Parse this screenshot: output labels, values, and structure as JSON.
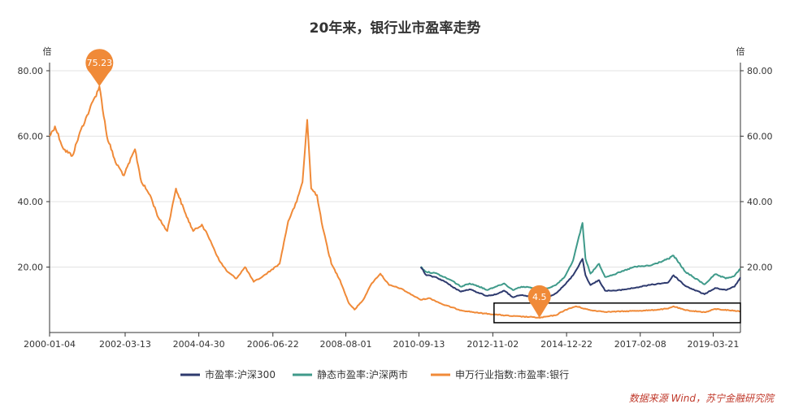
{
  "chart_data": {
    "type": "line",
    "title": "20年来，银行业市盈率走势",
    "y_unit_left": "倍",
    "y_unit_right": "倍",
    "ylim": [
      0,
      80
    ],
    "yticks": [
      "80.00",
      "60.00",
      "40.00",
      "20.00"
    ],
    "xlim": [
      "2000-01-04",
      "2020-01-03"
    ],
    "xticks": [
      "2000-01-04",
      "2002-03-13",
      "2004-04-30",
      "2006-06-22",
      "2008-08-01",
      "2010-09-13",
      "2012-11-02",
      "2014-12-22",
      "2017-02-08",
      "2019-03-21"
    ],
    "grid": true,
    "legend_position": "bottom",
    "colors": {
      "hs300": "#2e3a6e",
      "static": "#3f9a8a",
      "bank": "#f08a38"
    },
    "series": [
      {
        "name": "市盈率:沪深300",
        "color_key": "hs300",
        "points": [
          [
            "2010-10-01",
            20.0
          ],
          [
            "2010-12-01",
            17.5
          ],
          [
            "2011-03-01",
            17.0
          ],
          [
            "2011-06-01",
            15.8
          ],
          [
            "2011-09-01",
            14.0
          ],
          [
            "2011-12-01",
            12.5
          ],
          [
            "2012-03-01",
            13.2
          ],
          [
            "2012-06-01",
            12.2
          ],
          [
            "2012-09-01",
            11.2
          ],
          [
            "2012-12-01",
            11.6
          ],
          [
            "2013-03-01",
            12.8
          ],
          [
            "2013-06-01",
            10.8
          ],
          [
            "2013-09-01",
            11.4
          ],
          [
            "2013-12-01",
            11.0
          ],
          [
            "2014-03-01",
            10.5
          ],
          [
            "2014-06-01",
            10.8
          ],
          [
            "2014-09-01",
            12.0
          ],
          [
            "2014-12-01",
            14.5
          ],
          [
            "2015-03-01",
            17.5
          ],
          [
            "2015-06-08",
            22.5
          ],
          [
            "2015-07-10",
            17.5
          ],
          [
            "2015-09-01",
            14.5
          ],
          [
            "2015-12-01",
            16.0
          ],
          [
            "2016-02-01",
            12.8
          ],
          [
            "2016-06-01",
            12.8
          ],
          [
            "2016-12-01",
            13.6
          ],
          [
            "2017-06-01",
            14.6
          ],
          [
            "2017-12-01",
            15.3
          ],
          [
            "2018-01-26",
            17.5
          ],
          [
            "2018-06-01",
            14.2
          ],
          [
            "2018-12-20",
            11.7
          ],
          [
            "2019-04-10",
            13.6
          ],
          [
            "2019-08-01",
            13.0
          ],
          [
            "2019-11-01",
            14.0
          ],
          [
            "2020-01-03",
            16.8
          ]
        ]
      },
      {
        "name": "静态市盈率:沪深两市",
        "color_key": "static",
        "points": [
          [
            "2010-10-01",
            20.1
          ],
          [
            "2010-12-01",
            18.5
          ],
          [
            "2011-03-01",
            18.2
          ],
          [
            "2011-06-01",
            17.0
          ],
          [
            "2011-09-01",
            15.8
          ],
          [
            "2011-12-01",
            14.0
          ],
          [
            "2012-03-01",
            15.0
          ],
          [
            "2012-06-01",
            14.2
          ],
          [
            "2012-09-01",
            13.0
          ],
          [
            "2012-12-01",
            14.0
          ],
          [
            "2013-03-01",
            15.0
          ],
          [
            "2013-06-01",
            13.0
          ],
          [
            "2013-09-01",
            14.0
          ],
          [
            "2013-12-01",
            13.8
          ],
          [
            "2014-03-01",
            13.0
          ],
          [
            "2014-06-01",
            13.5
          ],
          [
            "2014-09-01",
            14.5
          ],
          [
            "2014-12-01",
            17.0
          ],
          [
            "2015-03-01",
            22.0
          ],
          [
            "2015-06-08",
            33.5
          ],
          [
            "2015-07-10",
            22.5
          ],
          [
            "2015-09-01",
            18.0
          ],
          [
            "2015-12-01",
            21.0
          ],
          [
            "2016-02-01",
            17.0
          ],
          [
            "2016-06-01",
            18.0
          ],
          [
            "2016-12-01",
            20.0
          ],
          [
            "2017-06-01",
            20.5
          ],
          [
            "2017-12-01",
            22.5
          ],
          [
            "2018-01-26",
            23.5
          ],
          [
            "2018-06-01",
            18.5
          ],
          [
            "2018-12-20",
            14.7
          ],
          [
            "2019-04-10",
            17.8
          ],
          [
            "2019-08-01",
            16.5
          ],
          [
            "2019-11-01",
            17.3
          ],
          [
            "2020-01-03",
            19.5
          ]
        ]
      },
      {
        "name": "申万行业指数:市盈率:银行",
        "color_key": "bank",
        "points": [
          [
            "2000-01-04",
            60.0
          ],
          [
            "2000-03-01",
            63.0
          ],
          [
            "2000-06-01",
            56.0
          ],
          [
            "2000-09-01",
            54.0
          ],
          [
            "2000-12-01",
            62.0
          ],
          [
            "2001-03-01",
            68.0
          ],
          [
            "2001-06-14",
            75.23
          ],
          [
            "2001-09-01",
            60.0
          ],
          [
            "2001-12-01",
            52.0
          ],
          [
            "2002-03-01",
            48.0
          ],
          [
            "2002-06-25",
            56.0
          ],
          [
            "2002-09-01",
            46.0
          ],
          [
            "2002-12-01",
            42.0
          ],
          [
            "2003-03-01",
            35.0
          ],
          [
            "2003-06-01",
            31.0
          ],
          [
            "2003-09-01",
            44.0
          ],
          [
            "2003-12-01",
            37.0
          ],
          [
            "2004-03-01",
            31.0
          ],
          [
            "2004-06-01",
            33.0
          ],
          [
            "2004-09-01",
            28.0
          ],
          [
            "2004-12-01",
            22.0
          ],
          [
            "2005-03-01",
            18.5
          ],
          [
            "2005-06-01",
            16.5
          ],
          [
            "2005-09-01",
            20.0
          ],
          [
            "2005-12-01",
            15.5
          ],
          [
            "2006-03-01",
            17.0
          ],
          [
            "2006-06-01",
            19.0
          ],
          [
            "2006-09-01",
            21.0
          ],
          [
            "2006-12-01",
            34.0
          ],
          [
            "2007-03-01",
            40.0
          ],
          [
            "2007-05-01",
            46.0
          ],
          [
            "2007-06-20",
            65.0
          ],
          [
            "2007-08-01",
            44.0
          ],
          [
            "2007-10-01",
            42.0
          ],
          [
            "2007-12-01",
            32.0
          ],
          [
            "2008-03-01",
            21.0
          ],
          [
            "2008-06-01",
            16.0
          ],
          [
            "2008-09-01",
            9.0
          ],
          [
            "2008-11-01",
            7.0
          ],
          [
            "2009-02-01",
            10.0
          ],
          [
            "2009-05-01",
            15.0
          ],
          [
            "2009-08-01",
            18.0
          ],
          [
            "2009-11-01",
            14.5
          ],
          [
            "2010-03-01",
            13.5
          ],
          [
            "2010-07-01",
            11.5
          ],
          [
            "2010-10-01",
            10.0
          ],
          [
            "2011-01-01",
            10.5
          ],
          [
            "2011-06-01",
            8.5
          ],
          [
            "2011-12-01",
            6.8
          ],
          [
            "2012-06-01",
            6.0
          ],
          [
            "2012-12-01",
            5.5
          ],
          [
            "2013-06-01",
            5.0
          ],
          [
            "2014-01-01",
            4.7
          ],
          [
            "2014-03-10",
            4.5
          ],
          [
            "2014-09-01",
            5.3
          ],
          [
            "2014-12-01",
            6.8
          ],
          [
            "2015-04-01",
            8.0
          ],
          [
            "2015-09-01",
            6.8
          ],
          [
            "2016-03-01",
            6.3
          ],
          [
            "2016-12-01",
            6.6
          ],
          [
            "2017-06-01",
            6.8
          ],
          [
            "2017-12-01",
            7.3
          ],
          [
            "2018-01-26",
            8.0
          ],
          [
            "2018-06-01",
            6.8
          ],
          [
            "2019-01-01",
            6.2
          ],
          [
            "2019-04-10",
            7.2
          ],
          [
            "2019-09-01",
            6.8
          ],
          [
            "2020-01-03",
            6.5
          ]
        ]
      }
    ],
    "annotations": [
      {
        "label": "75.23",
        "series_color_key": "bank",
        "date": "2001-06-14",
        "value": 75.23
      },
      {
        "label": "4.5",
        "series_color_key": "bank",
        "date": "2014-03-10",
        "value": 4.5
      }
    ],
    "highlight_box": {
      "date_from": "2012-11-15",
      "date_to": "2020-01-03",
      "value_from": 3.0,
      "value_to": 9.0
    },
    "source": "数据来源 Wind，苏宁金融研究院"
  }
}
